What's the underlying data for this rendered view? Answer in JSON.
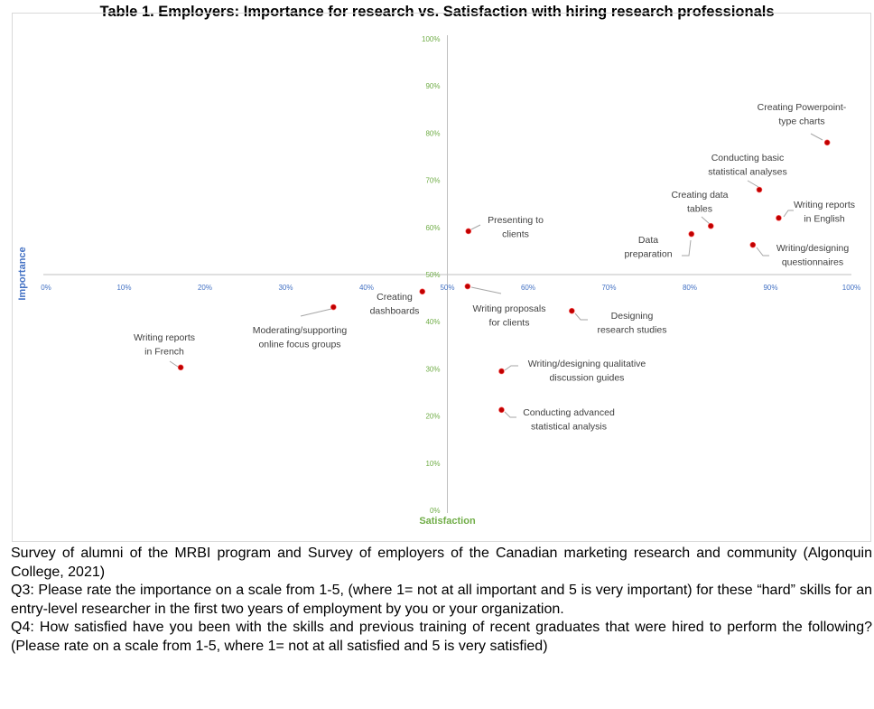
{
  "chart_data": {
    "type": "scatter",
    "title": "Table 1. Employers: Importance for research vs. Satisfaction with hiring research professionals",
    "xlabel": "Satisfaction",
    "ylabel": "Importance",
    "xlim": [
      0,
      100
    ],
    "ylim": [
      0,
      100
    ],
    "x_ticks": [
      "0%",
      "10%",
      "20%",
      "30%",
      "40%",
      "50%",
      "60%",
      "70%",
      "80%",
      "90%",
      "100%"
    ],
    "y_ticks": [
      "0%",
      "10%",
      "20%",
      "30%",
      "40%",
      "50%",
      "60%",
      "70%",
      "80%",
      "90%",
      "100%"
    ],
    "axes_cross": [
      50,
      50
    ],
    "grid": false,
    "point_color": "#c00000",
    "x_tick_color": "#4472c4",
    "y_tick_color": "#70ad47",
    "points": [
      {
        "label": [
          "Creating Powerpoint-",
          "type charts"
        ],
        "x": 97,
        "y": 78
      },
      {
        "label": [
          "Conducting basic",
          "statistical analyses"
        ],
        "x": 88.6,
        "y": 68
      },
      {
        "label": [
          "Writing reports",
          "in English"
        ],
        "x": 91,
        "y": 62
      },
      {
        "label": [
          "Creating data",
          "tables"
        ],
        "x": 82.6,
        "y": 60.3
      },
      {
        "label": [
          "Data",
          "preparation"
        ],
        "x": 80.2,
        "y": 58.6
      },
      {
        "label": [
          "Writing/designing",
          "questionnaires"
        ],
        "x": 87.8,
        "y": 56.3
      },
      {
        "label": [
          "Presenting to",
          "clients"
        ],
        "x": 52.6,
        "y": 59.2
      },
      {
        "label": [
          "Writing proposals",
          "for clients"
        ],
        "x": 52.5,
        "y": 47.5
      },
      {
        "label": [
          "Creating",
          "dashboards"
        ],
        "x": 46.9,
        "y": 46.4
      },
      {
        "label": [
          "Moderating/supporting",
          "online focus groups"
        ],
        "x": 35.9,
        "y": 43.1
      },
      {
        "label": [
          "Writing reports",
          "in French"
        ],
        "x": 17,
        "y": 30.3
      },
      {
        "label": [
          "Designing",
          "research studies"
        ],
        "x": 65.4,
        "y": 42.3
      },
      {
        "label": [
          "Writing/designing qualitative",
          "discussion guides"
        ],
        "x": 56.7,
        "y": 29.5
      },
      {
        "label": [
          "Conducting advanced",
          "statistical analysis"
        ],
        "x": 56.7,
        "y": 21.3
      }
    ]
  },
  "caption": [
    "Survey of alumni of the MRBI program and Survey of employers of the Canadian marketing research and community (Algonquin College, 2021)",
    "Q3: Please rate the importance on a scale from 1-5, (where 1= not at all important and 5 is very important) for these “hard” skills for an entry-level researcher in the first two years of employment by you or your organization.",
    "Q4: How satisfied have you been with the skills and previous training of recent graduates that were hired to perform the following? (Please rate on a scale from 1-5, where 1= not at all satisfied and 5 is very satisfied)"
  ]
}
